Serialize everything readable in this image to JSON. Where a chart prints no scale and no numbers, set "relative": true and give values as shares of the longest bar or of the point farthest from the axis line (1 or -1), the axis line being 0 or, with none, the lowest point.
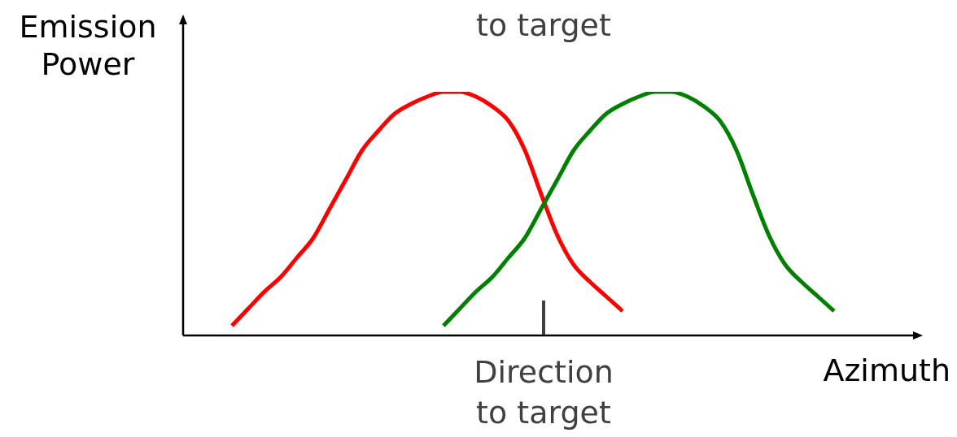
{
  "chart_data": {
    "type": "line",
    "relative": true,
    "xlabel": "Azimuth",
    "ylabel": "Emission Power",
    "marker": "none",
    "annotations": [
      "to target",
      "Direction to target"
    ],
    "categories": [
      null,
      null,
      null,
      null,
      null,
      null,
      null,
      null,
      null,
      null,
      null,
      null,
      null,
      null,
      null,
      null,
      null,
      null,
      null,
      null,
      null,
      null,
      null,
      null,
      null,
      null,
      null,
      null,
      null,
      null,
      null,
      null,
      null,
      null,
      null,
      null,
      null,
      null,
      null,
      null,
      null,
      null,
      null,
      null,
      null,
      null
    ],
    "series": [
      {
        "color": "#ff0000",
        "values": [
          null,
          null,
          null,
          0.04,
          0.11,
          0.18,
          0.24,
          0.32,
          0.4,
          0.52,
          0.64,
          0.76,
          0.84,
          0.91,
          0.95,
          0.98,
          1,
          1,
          0.98,
          0.94,
          0.88,
          0.76,
          0.58,
          0.41,
          0.29,
          0.22,
          0.16,
          0.1,
          null,
          null,
          null,
          null,
          null,
          null,
          null,
          null,
          null,
          null,
          null,
          null,
          null,
          null,
          null,
          null,
          null,
          null
        ]
      },
      {
        "color": "#008000",
        "values": [
          null,
          null,
          null,
          null,
          null,
          null,
          null,
          null,
          null,
          null,
          null,
          null,
          null,
          null,
          null,
          null,
          0.04,
          0.11,
          0.18,
          0.24,
          0.32,
          0.4,
          0.52,
          0.64,
          0.76,
          0.84,
          0.91,
          0.95,
          0.98,
          1,
          1,
          0.98,
          0.94,
          0.88,
          0.76,
          0.58,
          0.41,
          0.29,
          0.22,
          0.16,
          0.1,
          null,
          null,
          null,
          null,
          null
        ]
      }
    ]
  }
}
